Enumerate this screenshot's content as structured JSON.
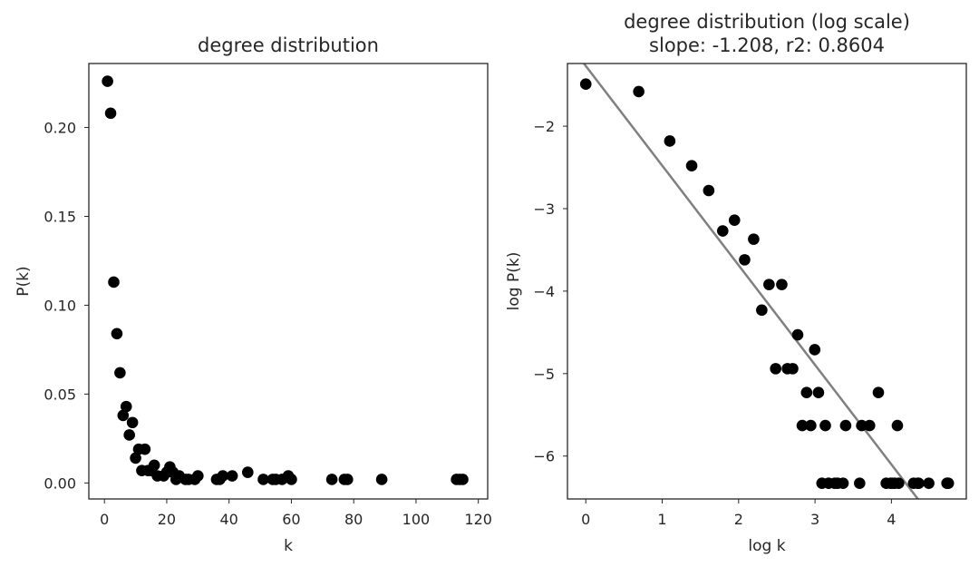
{
  "chart_data": [
    {
      "type": "scatter",
      "title": "degree distribution",
      "xlabel": "k",
      "ylabel": "P(k)",
      "xlim": [
        -5,
        123
      ],
      "ylim": [
        -0.009,
        0.236
      ],
      "xticks": [
        0,
        20,
        40,
        60,
        80,
        100,
        120
      ],
      "yticks": [
        0.0,
        0.05,
        0.1,
        0.15,
        0.2
      ],
      "xtick_labels": [
        "0",
        "20",
        "40",
        "60",
        "80",
        "100",
        "120"
      ],
      "ytick_labels": [
        "0.00",
        "0.05",
        "0.10",
        "0.15",
        "0.20"
      ],
      "grid": false,
      "marker_color": "#000000",
      "points": [
        [
          1,
          0.226
        ],
        [
          2,
          0.208
        ],
        [
          3,
          0.113
        ],
        [
          4,
          0.084
        ],
        [
          5,
          0.062
        ],
        [
          6,
          0.038
        ],
        [
          7,
          0.043
        ],
        [
          8,
          0.027
        ],
        [
          9,
          0.034
        ],
        [
          10,
          0.014
        ],
        [
          11,
          0.019
        ],
        [
          12,
          0.007
        ],
        [
          13,
          0.019
        ],
        [
          14,
          0.007
        ],
        [
          15,
          0.007
        ],
        [
          16,
          0.01
        ],
        [
          17,
          0.004
        ],
        [
          19,
          0.004
        ],
        [
          20,
          0.006
        ],
        [
          21,
          0.009
        ],
        [
          22,
          0.006
        ],
        [
          23,
          0.002
        ],
        [
          24,
          0.004
        ],
        [
          26,
          0.002
        ],
        [
          27,
          0.002
        ],
        [
          29,
          0.002
        ],
        [
          30,
          0.004
        ],
        [
          36,
          0.002
        ],
        [
          37,
          0.002
        ],
        [
          38,
          0.004
        ],
        [
          41,
          0.004
        ],
        [
          46,
          0.006
        ],
        [
          51,
          0.002
        ],
        [
          54,
          0.002
        ],
        [
          55,
          0.002
        ],
        [
          57,
          0.002
        ],
        [
          59,
          0.004
        ],
        [
          60,
          0.002
        ],
        [
          73,
          0.002
        ],
        [
          77,
          0.002
        ],
        [
          78,
          0.002
        ],
        [
          89,
          0.002
        ],
        [
          113,
          0.002
        ],
        [
          114,
          0.002
        ],
        [
          115,
          0.002
        ]
      ]
    },
    {
      "type": "scatter",
      "title": "degree distribution (log scale)",
      "subtitle": "slope: -1.208, r2: 0.8604",
      "xlabel": "log k",
      "ylabel": "log P(k)",
      "xlim": [
        -0.24,
        4.98
      ],
      "ylim": [
        -6.52,
        -1.24
      ],
      "xticks": [
        0,
        1,
        2,
        3,
        4
      ],
      "yticks": [
        -2,
        -3,
        -4,
        -5,
        -6
      ],
      "xtick_labels": [
        "0",
        "1",
        "2",
        "3",
        "4"
      ],
      "ytick_labels": [
        "−2",
        "−3",
        "−4",
        "−5",
        "−6"
      ],
      "grid": false,
      "marker_color": "#000000",
      "fit_color": "#808080",
      "fit_line": {
        "slope": -1.208,
        "intercept": -1.27,
        "x": [
          -0.24,
          4.98
        ]
      },
      "points": [
        [
          0.0,
          -1.49
        ],
        [
          0.693,
          -1.58
        ],
        [
          1.099,
          -2.18
        ],
        [
          1.386,
          -2.48
        ],
        [
          1.609,
          -2.78
        ],
        [
          1.792,
          -3.27
        ],
        [
          1.946,
          -3.14
        ],
        [
          2.079,
          -3.62
        ],
        [
          2.197,
          -3.37
        ],
        [
          2.303,
          -4.23
        ],
        [
          2.398,
          -3.92
        ],
        [
          2.485,
          -4.94
        ],
        [
          2.565,
          -3.92
        ],
        [
          2.639,
          -4.94
        ],
        [
          2.708,
          -4.94
        ],
        [
          2.773,
          -4.53
        ],
        [
          2.833,
          -5.63
        ],
        [
          2.89,
          -5.23
        ],
        [
          2.944,
          -5.63
        ],
        [
          2.996,
          -4.71
        ],
        [
          3.045,
          -5.23
        ],
        [
          3.091,
          -6.33
        ],
        [
          3.135,
          -5.63
        ],
        [
          3.178,
          -6.33
        ],
        [
          3.258,
          -6.33
        ],
        [
          3.296,
          -6.33
        ],
        [
          3.367,
          -6.33
        ],
        [
          3.401,
          -5.63
        ],
        [
          3.584,
          -6.33
        ],
        [
          3.611,
          -5.63
        ],
        [
          3.714,
          -5.63
        ],
        [
          3.829,
          -5.23
        ],
        [
          3.932,
          -6.33
        ],
        [
          3.989,
          -6.33
        ],
        [
          4.007,
          -6.33
        ],
        [
          4.043,
          -6.33
        ],
        [
          4.078,
          -5.63
        ],
        [
          4.094,
          -6.33
        ],
        [
          4.29,
          -6.33
        ],
        [
          4.344,
          -6.33
        ],
        [
          4.357,
          -6.33
        ],
        [
          4.489,
          -6.33
        ],
        [
          4.727,
          -6.33
        ],
        [
          4.736,
          -6.33
        ],
        [
          4.745,
          -6.33
        ]
      ]
    }
  ]
}
